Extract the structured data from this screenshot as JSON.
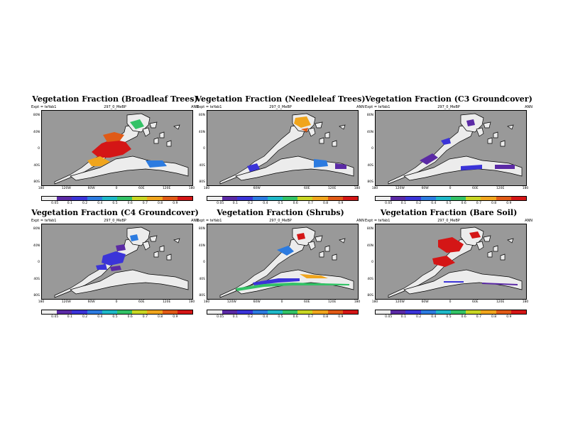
{
  "colorbar_colors": [
    "#eeeeee",
    "#5b2aa5",
    "#3b34d8",
    "#2c7be0",
    "#1fb8c8",
    "#33c266",
    "#c8d624",
    "#f0a51d",
    "#e05a16",
    "#d41616"
  ],
  "panels": [
    {
      "title": "Vegetation Fraction (Broadleaf Trees)",
      "expt": "Expt = teYab1",
      "run": "297_0_MeBP",
      "season": "ANN",
      "lat_labels": [
        "80N",
        "40N",
        "0",
        "40S",
        "80S"
      ],
      "lon_labels": [
        "180",
        "120W",
        "60W",
        "0",
        "60E",
        "120E",
        "180"
      ],
      "cbar_labels": [
        "0.05",
        "0.1",
        "0.2",
        "0.4",
        "0.5",
        "0.6",
        "0.7",
        "0.8",
        "0.9"
      ],
      "fill_colors": [
        "#d41616",
        "#e05a16",
        "#f0a51d",
        "#33c266",
        "#2c7be0"
      ]
    },
    {
      "title": "Vegetation Fraction (Needleleaf Trees)",
      "expt": "Expt = teYab1",
      "run": "297_0_MeBP",
      "season": "ANN",
      "lat_labels": [
        "80N",
        "40N",
        "0",
        "40S",
        "80S"
      ],
      "lon_labels": [
        "180",
        "",
        "60W",
        "",
        "60E",
        "120E",
        "180"
      ],
      "cbar_labels": [
        "0.05",
        "0.1",
        "0.2",
        "0.4",
        "0.5",
        "0.6",
        "0.7",
        "0.8",
        "0.9"
      ],
      "fill_colors": [
        "#f0a51d",
        "#e05a16",
        "#2c7be0",
        "#3b34d8",
        "#5b2aa5"
      ]
    },
    {
      "title": "Vegetation Fraction (C3 Groundcover)",
      "expt": "Expt = teYab1",
      "run": "297_0_MeBP",
      "season": "ANN",
      "lat_labels": [
        "80N",
        "40N",
        "0",
        "40S",
        "80S"
      ],
      "lon_labels": [
        "180",
        "120W",
        "60W",
        "0",
        "60E",
        "120E",
        "180"
      ],
      "cbar_labels": [
        "0.05",
        "0.1",
        "0.2",
        "0.4",
        "0.5",
        "0.6",
        "0.7",
        "0.8",
        "0.9"
      ],
      "fill_colors": [
        "#5b2aa5",
        "#3b34d8",
        "#5b2aa5",
        "#3b34d8",
        "#5b2aa5"
      ]
    },
    {
      "title": "Vegetation Fraction (C4 Groundcover)",
      "expt": "Expt = teYab1",
      "run": "297_0_MeBP",
      "season": "ANN",
      "lat_labels": [
        "80N",
        "40N",
        "0",
        "40S",
        "80S"
      ],
      "lon_labels": [
        "180",
        "120W",
        "60W",
        "0",
        "60E",
        "120E",
        "180"
      ],
      "cbar_labels": [
        "0.05",
        "0.1",
        "0.2",
        "0.4",
        "0.5",
        "0.6",
        "0.7",
        "0.8",
        "0.9"
      ],
      "fill_colors": [
        "#3b34d8",
        "#5b2aa5",
        "#2c7be0",
        "#3b34d8",
        "#5b2aa5"
      ]
    },
    {
      "title": "Vegetation Fraction (Shrubs)",
      "expt": "Expt = teYab1",
      "run": "297_0_MeBP",
      "season": "ANN",
      "lat_labels": [
        "80N",
        "40N",
        "0",
        "40S",
        "80S"
      ],
      "lon_labels": [
        "180",
        "120W",
        "60W",
        "0",
        "60E",
        "120E",
        "180"
      ],
      "cbar_labels": [
        "0.05",
        "0.1",
        "0.2",
        "0.4",
        "0.5",
        "0.6",
        "0.7",
        "0.8",
        "0.9"
      ],
      "fill_colors": [
        "#2c7be0",
        "#3b34d8",
        "#33c266",
        "#f0a51d",
        "#d41616"
      ]
    },
    {
      "title": "Vegetation Fraction (Bare Soil)",
      "expt": "Expt = teYab1",
      "run": "297_0_MeBP",
      "season": "ANN",
      "lat_labels": [
        "80N",
        "40N",
        "0",
        "40S",
        "80S"
      ],
      "lon_labels": [
        "180",
        "120W",
        "60W",
        "0",
        "60E",
        "120E",
        "180"
      ],
      "cbar_labels": [
        "0.05",
        "0.1",
        "0.2",
        "0.4",
        "0.5",
        "0.6",
        "0.7",
        "0.8",
        "0.9"
      ],
      "fill_colors": [
        "#d41616",
        "#d41616",
        "#d41616",
        "#3b34d8",
        "#5b2aa5"
      ]
    }
  ]
}
